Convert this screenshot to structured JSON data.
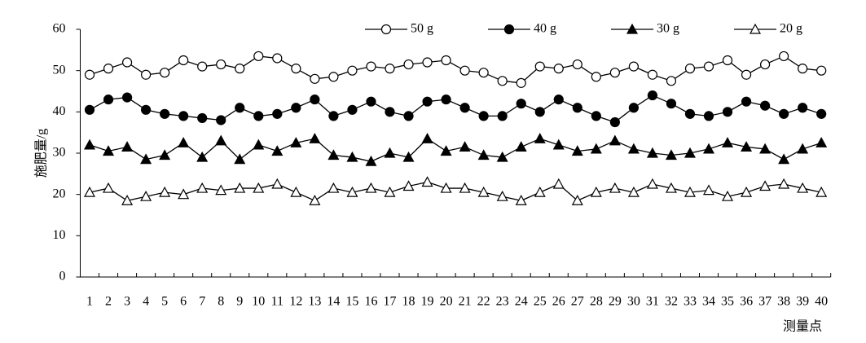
{
  "chart_data": {
    "type": "line",
    "y_label": "施肥量/g",
    "x_label": "测量点",
    "categories": [
      "1",
      "2",
      "3",
      "4",
      "5",
      "6",
      "7",
      "8",
      "9",
      "10",
      "11",
      "12",
      "13",
      "14",
      "15",
      "16",
      "17",
      "18",
      "19",
      "20",
      "21",
      "22",
      "23",
      "24",
      "25",
      "26",
      "27",
      "28",
      "29",
      "30",
      "31",
      "32",
      "33",
      "34",
      "35",
      "36",
      "37",
      "38",
      "39",
      "40"
    ],
    "ylim": [
      0,
      60
    ],
    "yticks": [
      0,
      10,
      20,
      30,
      40,
      50,
      60
    ],
    "grid": false,
    "series": [
      {
        "name": "50 g",
        "color": "#000000",
        "marker": "circle",
        "filled": false,
        "values": [
          49,
          50.5,
          52,
          49,
          49.5,
          52.5,
          51,
          51.5,
          50.5,
          53.5,
          53,
          50.5,
          48,
          48.5,
          50,
          51,
          50.5,
          51.5,
          52,
          52.5,
          50,
          49.5,
          47.5,
          47,
          51,
          50.5,
          51.5,
          48.5,
          49.5,
          51,
          49,
          47.5,
          50.5,
          51,
          52.5,
          49,
          51.5,
          53.5,
          50.5,
          50
        ]
      },
      {
        "name": "40 g",
        "color": "#000000",
        "marker": "circle",
        "filled": true,
        "values": [
          40.5,
          43,
          43.5,
          40.5,
          39.5,
          39,
          38.5,
          38,
          41,
          39,
          39.5,
          41,
          43,
          39,
          40.5,
          42.5,
          40,
          39,
          42.5,
          43,
          41,
          39,
          39,
          42,
          40,
          43,
          41,
          39,
          37.5,
          41,
          44,
          42,
          39.5,
          39,
          40,
          42.5,
          41.5,
          39.5,
          41,
          39.5
        ]
      },
      {
        "name": "30 g",
        "color": "#000000",
        "marker": "triangle",
        "filled": true,
        "values": [
          32,
          30.5,
          31.5,
          28.5,
          29.5,
          32.5,
          29,
          33,
          28.5,
          32,
          30.5,
          32.5,
          33.5,
          29.5,
          29,
          28,
          30,
          29,
          33.5,
          30.5,
          31.5,
          29.5,
          29,
          31.5,
          33.5,
          32,
          30.5,
          31,
          33,
          31,
          30,
          29.5,
          30,
          31,
          32.5,
          31.5,
          31,
          28.5,
          31,
          32.5
        ]
      },
      {
        "name": "20 g",
        "color": "#000000",
        "marker": "triangle",
        "filled": false,
        "values": [
          20.5,
          21.5,
          18.5,
          19.5,
          20.5,
          20,
          21.5,
          21,
          21.5,
          21.5,
          22.5,
          20.5,
          18.5,
          21.5,
          20.5,
          21.5,
          20.5,
          22,
          23,
          21.5,
          21.5,
          20.5,
          19.5,
          18.5,
          20.5,
          22.5,
          18.5,
          20.5,
          21.5,
          20.5,
          22.5,
          21.5,
          20.5,
          21,
          19.5,
          20.5,
          22,
          22.5,
          21.5,
          20.5
        ]
      }
    ]
  }
}
